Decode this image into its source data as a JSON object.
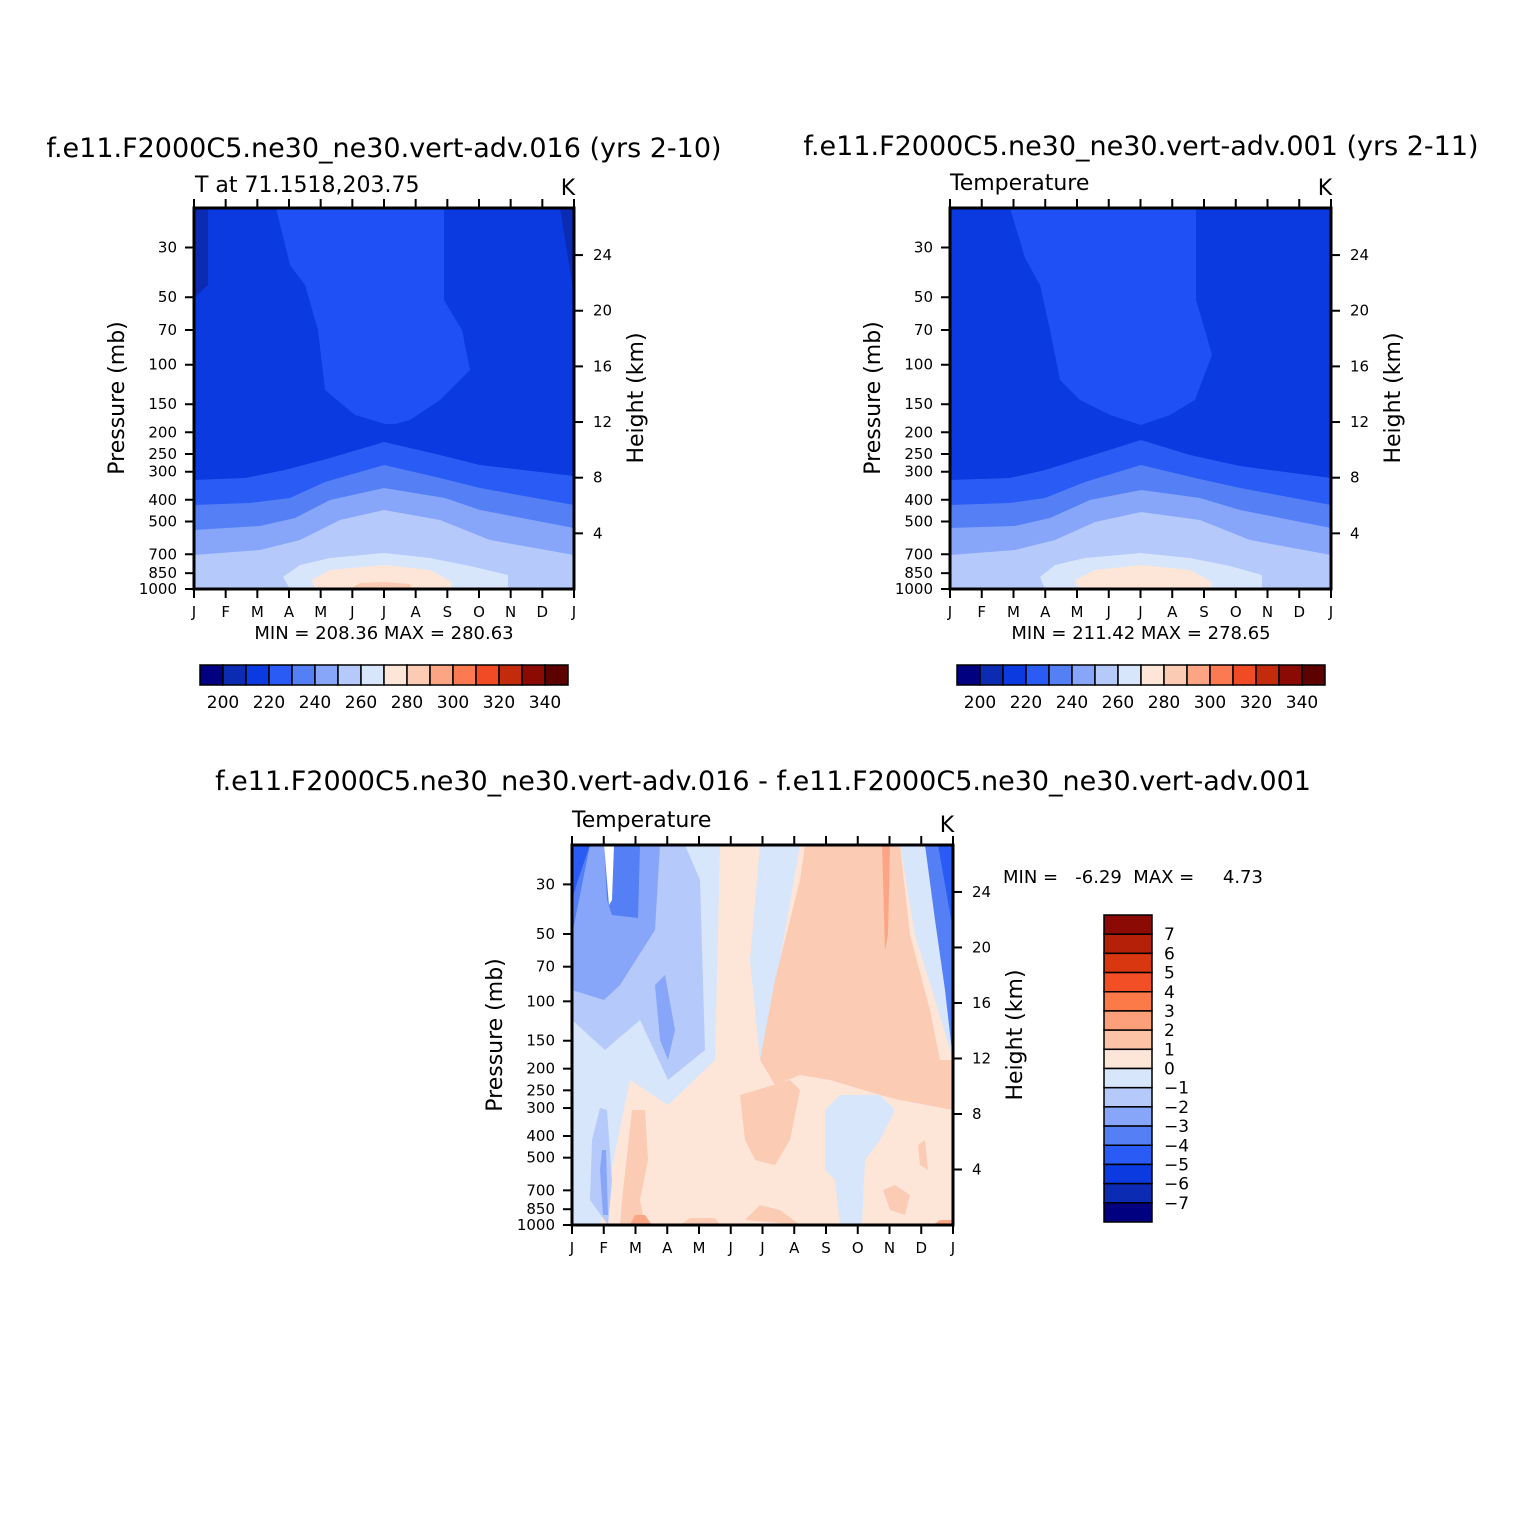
{
  "chart_data": [
    {
      "type": "heatmap",
      "title": "f.e11.F2000C5.ne30_ne30.vert-adv.016 (yrs 2-10)",
      "subtitle": "T at 71.1518,203.75",
      "units": "K",
      "ylabel": "Pressure (mb)",
      "y2label": "Height (km)",
      "x_tick_labels": [
        "J",
        "F",
        "M",
        "A",
        "M",
        "J",
        "J",
        "A",
        "S",
        "O",
        "N",
        "D",
        "J"
      ],
      "y_ticks": [
        30,
        50,
        70,
        100,
        150,
        200,
        250,
        300,
        400,
        500,
        700,
        850,
        1000
      ],
      "y2_ticks": [
        4,
        8,
        12,
        16,
        20,
        24
      ],
      "ylim": [
        1000,
        20
      ],
      "y_scale": "log",
      "stats": "MIN = 208.36  MAX = 280.63",
      "min": 208.36,
      "max": 280.63,
      "colorbar": {
        "orientation": "horizontal",
        "labels": [
          "200",
          "220",
          "240",
          "260",
          "280",
          "300",
          "320",
          "340"
        ],
        "levels": [
          195,
          200,
          205,
          210,
          215,
          220,
          225,
          230,
          235,
          240,
          245,
          250,
          255,
          260,
          265,
          270,
          275,
          280,
          285,
          290,
          295,
          300,
          305,
          310,
          315,
          320,
          325,
          330,
          335,
          340
        ],
        "colors": [
          "#000080",
          "#0c2bb3",
          "#0a3ae0",
          "#2a5cf5",
          "#5580f5",
          "#87a6f9",
          "#b5c9fb",
          "#d7e6fb",
          "#fde6d8",
          "#fccbb3",
          "#fba585",
          "#fb7a52",
          "#f04b24",
          "#c42a0c",
          "#8b0a04",
          "#5c0000"
        ]
      }
    },
    {
      "type": "heatmap",
      "title": "f.e11.F2000C5.ne30_ne30.vert-adv.001 (yrs 2-11)",
      "subtitle": "Temperature",
      "units": "K",
      "ylabel": "Pressure (mb)",
      "y2label": "Height (km)",
      "x_tick_labels": [
        "J",
        "F",
        "M",
        "A",
        "M",
        "J",
        "J",
        "A",
        "S",
        "O",
        "N",
        "D",
        "J"
      ],
      "y_ticks": [
        30,
        50,
        70,
        100,
        150,
        200,
        250,
        300,
        400,
        500,
        700,
        850,
        1000
      ],
      "y2_ticks": [
        4,
        8,
        12,
        16,
        20,
        24
      ],
      "ylim": [
        1000,
        20
      ],
      "y_scale": "log",
      "stats": "MIN = 211.42  MAX = 278.65",
      "min": 211.42,
      "max": 278.65,
      "colorbar": {
        "orientation": "horizontal",
        "labels": [
          "200",
          "220",
          "240",
          "260",
          "280",
          "300",
          "320",
          "340"
        ]
      }
    },
    {
      "type": "heatmap",
      "title": "f.e11.F2000C5.ne30_ne30.vert-adv.016 - f.e11.F2000C5.ne30_ne30.vert-adv.001",
      "subtitle": "Temperature",
      "units": "K",
      "ylabel": "Pressure (mb)",
      "y2label": "Height (km)",
      "x_tick_labels": [
        "J",
        "F",
        "M",
        "A",
        "M",
        "J",
        "J",
        "A",
        "S",
        "O",
        "N",
        "D",
        "J"
      ],
      "y_ticks": [
        30,
        50,
        70,
        100,
        150,
        200,
        250,
        300,
        400,
        500,
        700,
        850,
        1000
      ],
      "y2_ticks": [
        4,
        8,
        12,
        16,
        20,
        24
      ],
      "ylim": [
        1000,
        20
      ],
      "y_scale": "log",
      "stats": "MIN =   -6.29  MAX =     4.73",
      "min": -6.29,
      "max": 4.73,
      "colorbar": {
        "orientation": "vertical",
        "labels": [
          "7",
          "6",
          "5",
          "4",
          "3",
          "2",
          "1",
          "0",
          "-1",
          "-2",
          "-3",
          "-4",
          "-5",
          "-6",
          "-7"
        ],
        "colors": [
          "#8b0a04",
          "#b52008",
          "#d9370f",
          "#f24f26",
          "#fb7a48",
          "#fca07c",
          "#fcc3a6",
          "#fde6d8",
          "#d7e6fb",
          "#b5c9fb",
          "#87a6f9",
          "#5580f5",
          "#2a5cf5",
          "#0a3ae0",
          "#0c2bb3",
          "#000080"
        ]
      }
    }
  ]
}
